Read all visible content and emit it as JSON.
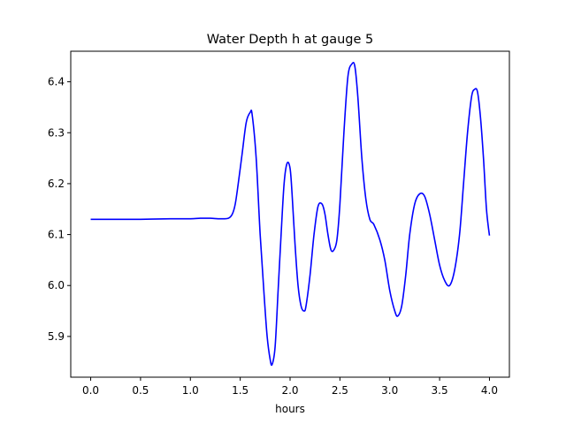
{
  "chart_data": {
    "type": "line",
    "title": "Water Depth h at gauge 5",
    "xlabel": "hours",
    "ylabel": "",
    "xlim": [
      -0.2,
      4.2
    ],
    "ylim": [
      5.82,
      6.46
    ],
    "xticks": [
      0.0,
      0.5,
      1.0,
      1.5,
      2.0,
      2.5,
      3.0,
      3.5,
      4.0
    ],
    "xtick_labels": [
      "0.0",
      "0.5",
      "1.0",
      "1.5",
      "2.0",
      "2.5",
      "3.0",
      "3.5",
      "4.0"
    ],
    "yticks": [
      5.9,
      6.0,
      6.1,
      6.2,
      6.3,
      6.4
    ],
    "ytick_labels": [
      "5.9",
      "6.0",
      "6.1",
      "6.2",
      "6.3",
      "6.4"
    ],
    "grid": false,
    "colors": {
      "line": "#0000ff",
      "axes": "#000000",
      "background": "#ffffff"
    },
    "series": [
      {
        "x": [
          0.0,
          0.2,
          0.5,
          0.8,
          1.0,
          1.1,
          1.2,
          1.3,
          1.38,
          1.42,
          1.45,
          1.48,
          1.52,
          1.56,
          1.6,
          1.62,
          1.66,
          1.7,
          1.74,
          1.77,
          1.8,
          1.82,
          1.85,
          1.88,
          1.91,
          1.94,
          1.97,
          2.0,
          2.02,
          2.05,
          2.08,
          2.11,
          2.14,
          2.16,
          2.2,
          2.24,
          2.28,
          2.32,
          2.35,
          2.38,
          2.41,
          2.44,
          2.47,
          2.5,
          2.54,
          2.58,
          2.62,
          2.65,
          2.68,
          2.72,
          2.76,
          2.8,
          2.84,
          2.9,
          2.95,
          3.0,
          3.05,
          3.08,
          3.12,
          3.16,
          3.2,
          3.25,
          3.3,
          3.35,
          3.4,
          3.45,
          3.5,
          3.55,
          3.6,
          3.65,
          3.7,
          3.74,
          3.78,
          3.82,
          3.85,
          3.88,
          3.91,
          3.94,
          3.97,
          4.0
        ],
        "y": [
          6.13,
          6.13,
          6.13,
          6.131,
          6.131,
          6.132,
          6.132,
          6.131,
          6.132,
          6.14,
          6.16,
          6.2,
          6.26,
          6.32,
          6.34,
          6.335,
          6.25,
          6.1,
          5.98,
          5.9,
          5.855,
          5.845,
          5.88,
          5.99,
          6.1,
          6.2,
          6.24,
          6.23,
          6.18,
          6.08,
          6.0,
          5.96,
          5.95,
          5.96,
          6.02,
          6.1,
          6.155,
          6.16,
          6.14,
          6.1,
          6.07,
          6.07,
          6.09,
          6.16,
          6.3,
          6.41,
          6.435,
          6.43,
          6.37,
          6.25,
          6.17,
          6.13,
          6.12,
          6.09,
          6.05,
          5.99,
          5.95,
          5.94,
          5.96,
          6.02,
          6.1,
          6.16,
          6.18,
          6.175,
          6.14,
          6.09,
          6.04,
          6.01,
          6.0,
          6.03,
          6.1,
          6.2,
          6.3,
          6.37,
          6.385,
          6.38,
          6.33,
          6.25,
          6.15,
          6.098
        ]
      }
    ]
  }
}
